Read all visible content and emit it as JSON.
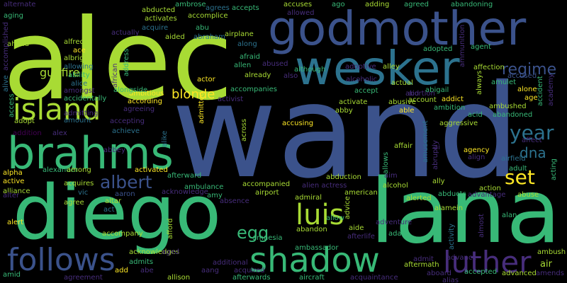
{
  "background_color": "#000000",
  "palette": [
    "#a8db34",
    "#38b977",
    "#2c728e",
    "#3b528b",
    "#472d7b",
    "#440154",
    "#fde725"
  ],
  "words": [
    "alec",
    "wand",
    "godmother",
    "wesker",
    "diego",
    "lana",
    "brahms",
    "island",
    "shadow",
    "luis",
    "follows",
    "luther",
    "year",
    "regime",
    "albert",
    "set",
    "dna",
    "egg",
    "blonde",
    "gunfire",
    "alternate",
    "aging",
    "alfred",
    "ace",
    "albright",
    "allowing",
    "ahead",
    "ability",
    "alice",
    "amongst",
    "african",
    "actually",
    "address",
    "abducted",
    "activates",
    "acquire",
    "aided",
    "abraham",
    "abu",
    "ambrose",
    "accomplice",
    "agrees",
    "accepts",
    "airplane",
    "along",
    "afraid",
    "allen",
    "abused",
    "already",
    "accusing",
    "abby",
    "able",
    "accuses",
    "allowed",
    "ago",
    "adding",
    "agreed",
    "abandoning",
    "adoptive",
    "alley",
    "adopted",
    "agent",
    "ammunition",
    "affection",
    "amulet",
    "always",
    "accused",
    "accident",
    "academy",
    "alone",
    "age",
    "ambushed",
    "abandoned",
    "aggressive",
    "acid",
    "agency",
    "align",
    "airfield",
    "adult",
    "acting",
    "action",
    "advantage",
    "abuse",
    "alan",
    "alamein",
    "ambush",
    "air",
    "amends",
    "advanced",
    "accepted",
    "aboard",
    "alias",
    "activity",
    "almost",
    "advance",
    "admit",
    "aftermath",
    "adam",
    "alerted",
    "abducts",
    "ally",
    "alcohol",
    "aim",
    "affair",
    "abigail",
    "account",
    "addict",
    "ambition",
    "abortion",
    "abusive",
    "aid",
    "activate",
    "actual",
    "accept",
    "although",
    "also",
    "actor",
    "accompanies",
    "activist",
    "alcoholic",
    "across",
    "alike",
    "admitted",
    "ambitious",
    "according",
    "accidentally",
    "alongside",
    "admitting",
    "agreeing",
    "accepting",
    "adopt",
    "amount",
    "addition",
    "alex",
    "access",
    "achieve",
    "abbey",
    "alexander",
    "alpha",
    "among",
    "afterward",
    "activated",
    "active",
    "acquires",
    "alliance",
    "vic",
    "aaron",
    "acknowledge",
    "ambulance",
    "amy",
    "absence",
    "accompanied",
    "airport",
    "alien actress",
    "admiral",
    "american",
    "abduction",
    "advice",
    "allows",
    "amusement",
    "abruptly",
    "abandon",
    "allow",
    "aide",
    "adventure",
    "afford",
    "agree",
    "altar",
    "act",
    "alert",
    "accompany",
    "acknowledges",
    "admits",
    "abe",
    "aang",
    "additional",
    "amnesia",
    "afterlife",
    "ambassador",
    "aged",
    "add",
    "allison",
    "acquired",
    "afterwards",
    "aircraft",
    "acquaintance",
    "agreement",
    "amid",
    "alter",
    "alive",
    "accomplished",
    "affect",
    "ai"
  ]
}
